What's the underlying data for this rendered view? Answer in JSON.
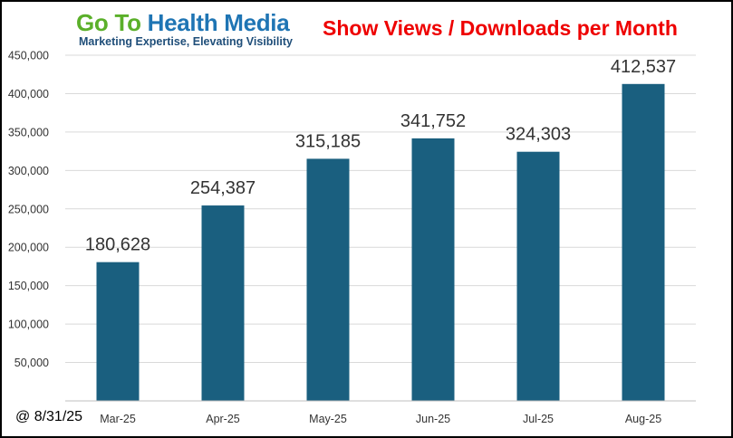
{
  "logo": {
    "word_go": "Go",
    "word_to": "To",
    "word_health_media": "Health Media",
    "tagline": "Marketing Expertise, Elevating Visibility",
    "color_green": "#5bb02a",
    "color_blue": "#1f75b4",
    "color_tagline": "#1f4e79"
  },
  "footnote": "@ 8/31/25",
  "colors": {
    "bar": "#1a5f7f",
    "title": "#ee0000",
    "grid": "#d9d9d9",
    "axis": "#bfbfbf"
  },
  "chart_data": {
    "type": "bar",
    "title": "Show Views / Downloads per Month",
    "categories": [
      "Mar-25",
      "Apr-25",
      "May-25",
      "Jun-25",
      "Jul-25",
      "Aug-25"
    ],
    "values": [
      180628,
      254387,
      315185,
      341752,
      324303,
      412537
    ],
    "data_labels": [
      "180,628",
      "254,387",
      "315,185",
      "341,752",
      "324,303",
      "412,537"
    ],
    "y_ticks": [
      0,
      50000,
      100000,
      150000,
      200000,
      250000,
      300000,
      350000,
      400000,
      450000
    ],
    "y_tick_labels": [
      "",
      "50,000",
      "100,000",
      "150,000",
      "200,000",
      "250,000",
      "300,000",
      "350,000",
      "400,000",
      "450,000"
    ],
    "ylim": [
      0,
      450000
    ],
    "grid": true,
    "legend": "none",
    "xlabel": "",
    "ylabel": ""
  }
}
